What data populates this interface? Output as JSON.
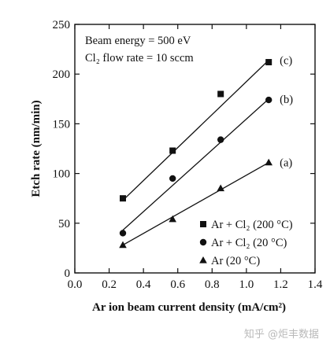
{
  "chart_data": {
    "type": "scatter",
    "xlabel": "Ar ion beam current density (mA/cm²)",
    "ylabel": "Etch rate (nm/min)",
    "xlim": [
      0.0,
      1.4
    ],
    "ylim": [
      0,
      250
    ],
    "xticks": [
      "0.0",
      "0.2",
      "0.4",
      "0.6",
      "0.8",
      "1.0",
      "1.2",
      "1.4"
    ],
    "yticks": [
      "0",
      "50",
      "100",
      "150",
      "200",
      "250"
    ],
    "annotations": [
      "Beam energy = 500 eV",
      "Cl₂ flow rate = 10 sccm"
    ],
    "legend_position": "bottom-right",
    "grid": false,
    "series": [
      {
        "name": "Ar + Cl₂ (200 °C)",
        "curve_label": "(c)",
        "marker": "square",
        "x": [
          0.28,
          0.57,
          0.85,
          1.13
        ],
        "y": [
          75,
          123,
          180,
          212
        ],
        "fit_line": {
          "x": [
            0.28,
            1.13
          ],
          "y": [
            73,
            214
          ]
        }
      },
      {
        "name": "Ar + Cl₂ (20 °C)",
        "curve_label": "(b)",
        "marker": "circle",
        "x": [
          0.28,
          0.57,
          0.85,
          1.13
        ],
        "y": [
          40,
          95,
          134,
          174
        ],
        "fit_line": {
          "x": [
            0.28,
            1.13
          ],
          "y": [
            43,
            175
          ]
        }
      },
      {
        "name": "Ar (20 °C)",
        "curve_label": "(a)",
        "marker": "triangle",
        "x": [
          0.28,
          0.57,
          0.85,
          1.13
        ],
        "y": [
          28,
          54,
          85,
          111
        ],
        "fit_line": {
          "x": [
            0.28,
            1.13
          ],
          "y": [
            28,
            111
          ]
        }
      }
    ]
  },
  "watermark": "知乎 @炬丰数据"
}
